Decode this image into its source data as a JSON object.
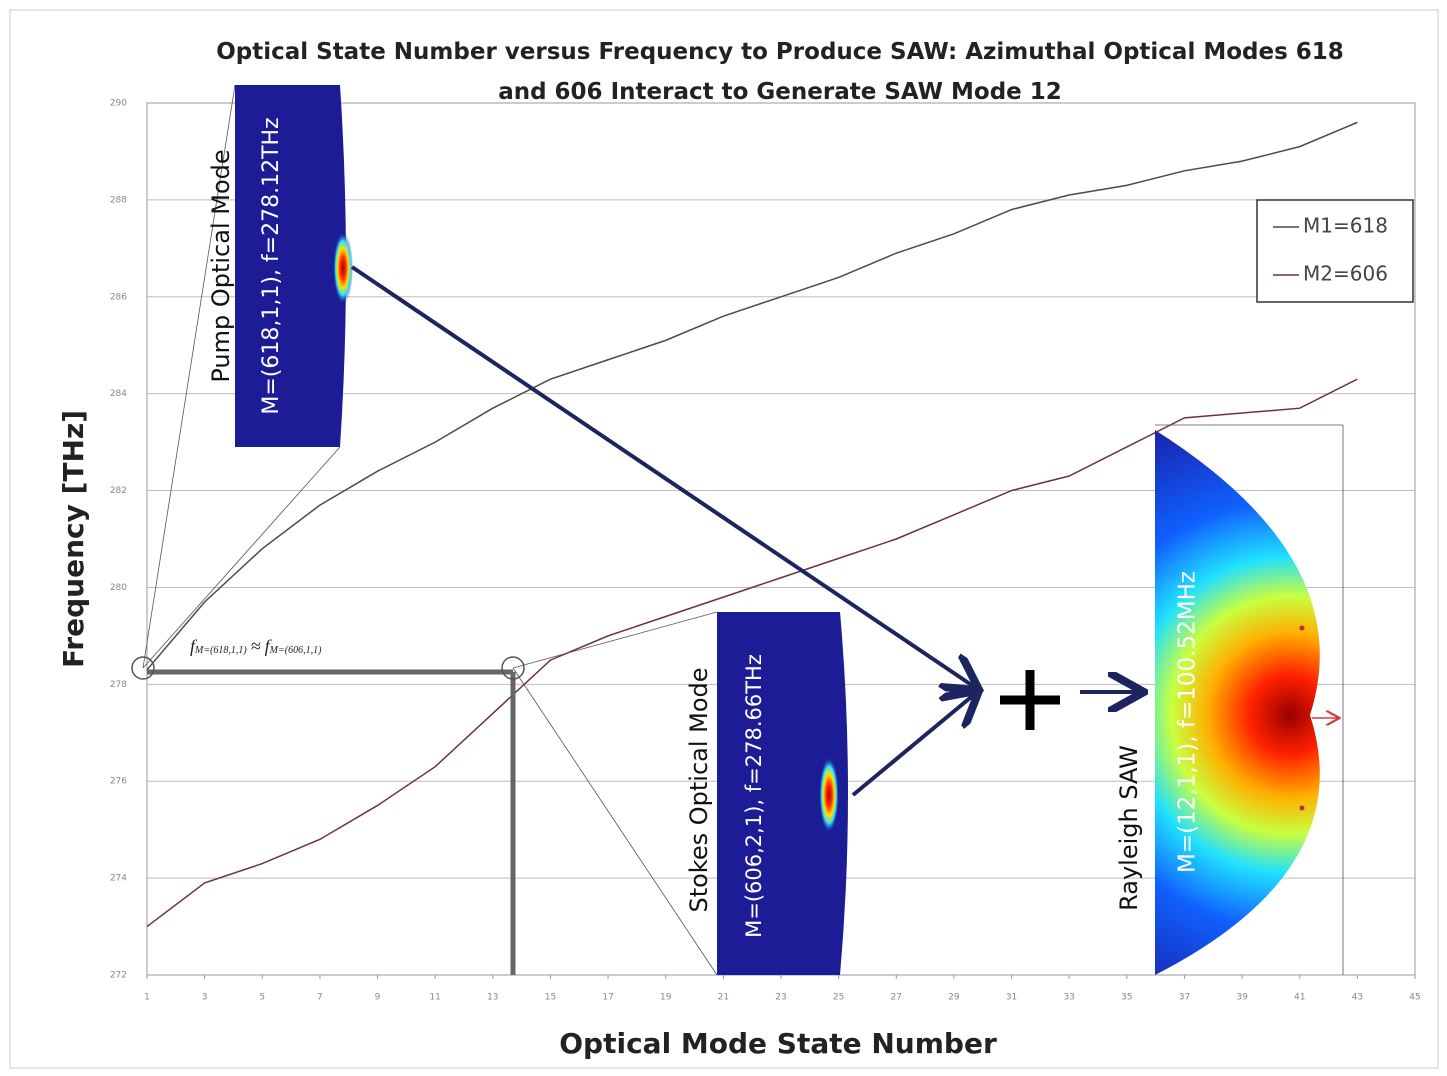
{
  "chart_data": {
    "type": "line",
    "title": "Optical State Number versus Frequency to Produce SAW: Azimuthal Optical Modes 618 and 606 Interact to Generate SAW Mode 12",
    "x_label": "Optical Mode State Number",
    "y_label": "Frequency [THz]",
    "x": [
      1,
      3,
      5,
      7,
      9,
      11,
      13,
      15,
      17,
      19,
      21,
      23,
      25,
      27,
      29,
      31,
      33,
      35,
      37,
      39,
      41,
      43
    ],
    "series": [
      {
        "name": "M1=618",
        "color": "#4a4a4a",
        "values": [
          278.3,
          279.7,
          280.8,
          281.7,
          282.4,
          283.0,
          283.7,
          284.3,
          284.7,
          285.1,
          285.6,
          286.0,
          286.4,
          286.9,
          287.3,
          287.8,
          288.1,
          288.3,
          288.6,
          288.8,
          289.1,
          289.6
        ]
      },
      {
        "name": "M2=606",
        "color": "#6e3434",
        "values": [
          273.0,
          273.9,
          274.3,
          274.8,
          275.5,
          276.3,
          277.4,
          278.5,
          279.0,
          279.4,
          279.8,
          280.2,
          280.6,
          281.0,
          281.5,
          282.0,
          282.3,
          282.9,
          283.5,
          283.6,
          283.7,
          284.3
        ]
      }
    ],
    "xlim": [
      1,
      45
    ],
    "xticks": [
      1,
      3,
      5,
      7,
      9,
      11,
      13,
      15,
      17,
      19,
      21,
      23,
      25,
      27,
      29,
      31,
      33,
      35,
      37,
      39,
      41,
      43,
      45
    ],
    "ylim": [
      272,
      290
    ],
    "yticks": [
      272,
      274,
      276,
      278,
      280,
      282,
      284,
      286,
      288,
      290
    ],
    "grid": true,
    "legend": "upper right",
    "annotations": {
      "pump_title": "Pump Optical Mode",
      "pump_mode": "M=(618,1,1), f=278.12THz",
      "stokes_title": "Stokes Optical Mode",
      "stokes_mode": "M=(606,2,1), f=278.66THz",
      "saw_title": "Rayleigh SAW",
      "saw_mode": "M=(12,1,1), f=100.52MHz",
      "formula": [
        "f",
        "M=(618,1,1)",
        "≈",
        "f",
        "M=(606,1,1)"
      ]
    }
  }
}
